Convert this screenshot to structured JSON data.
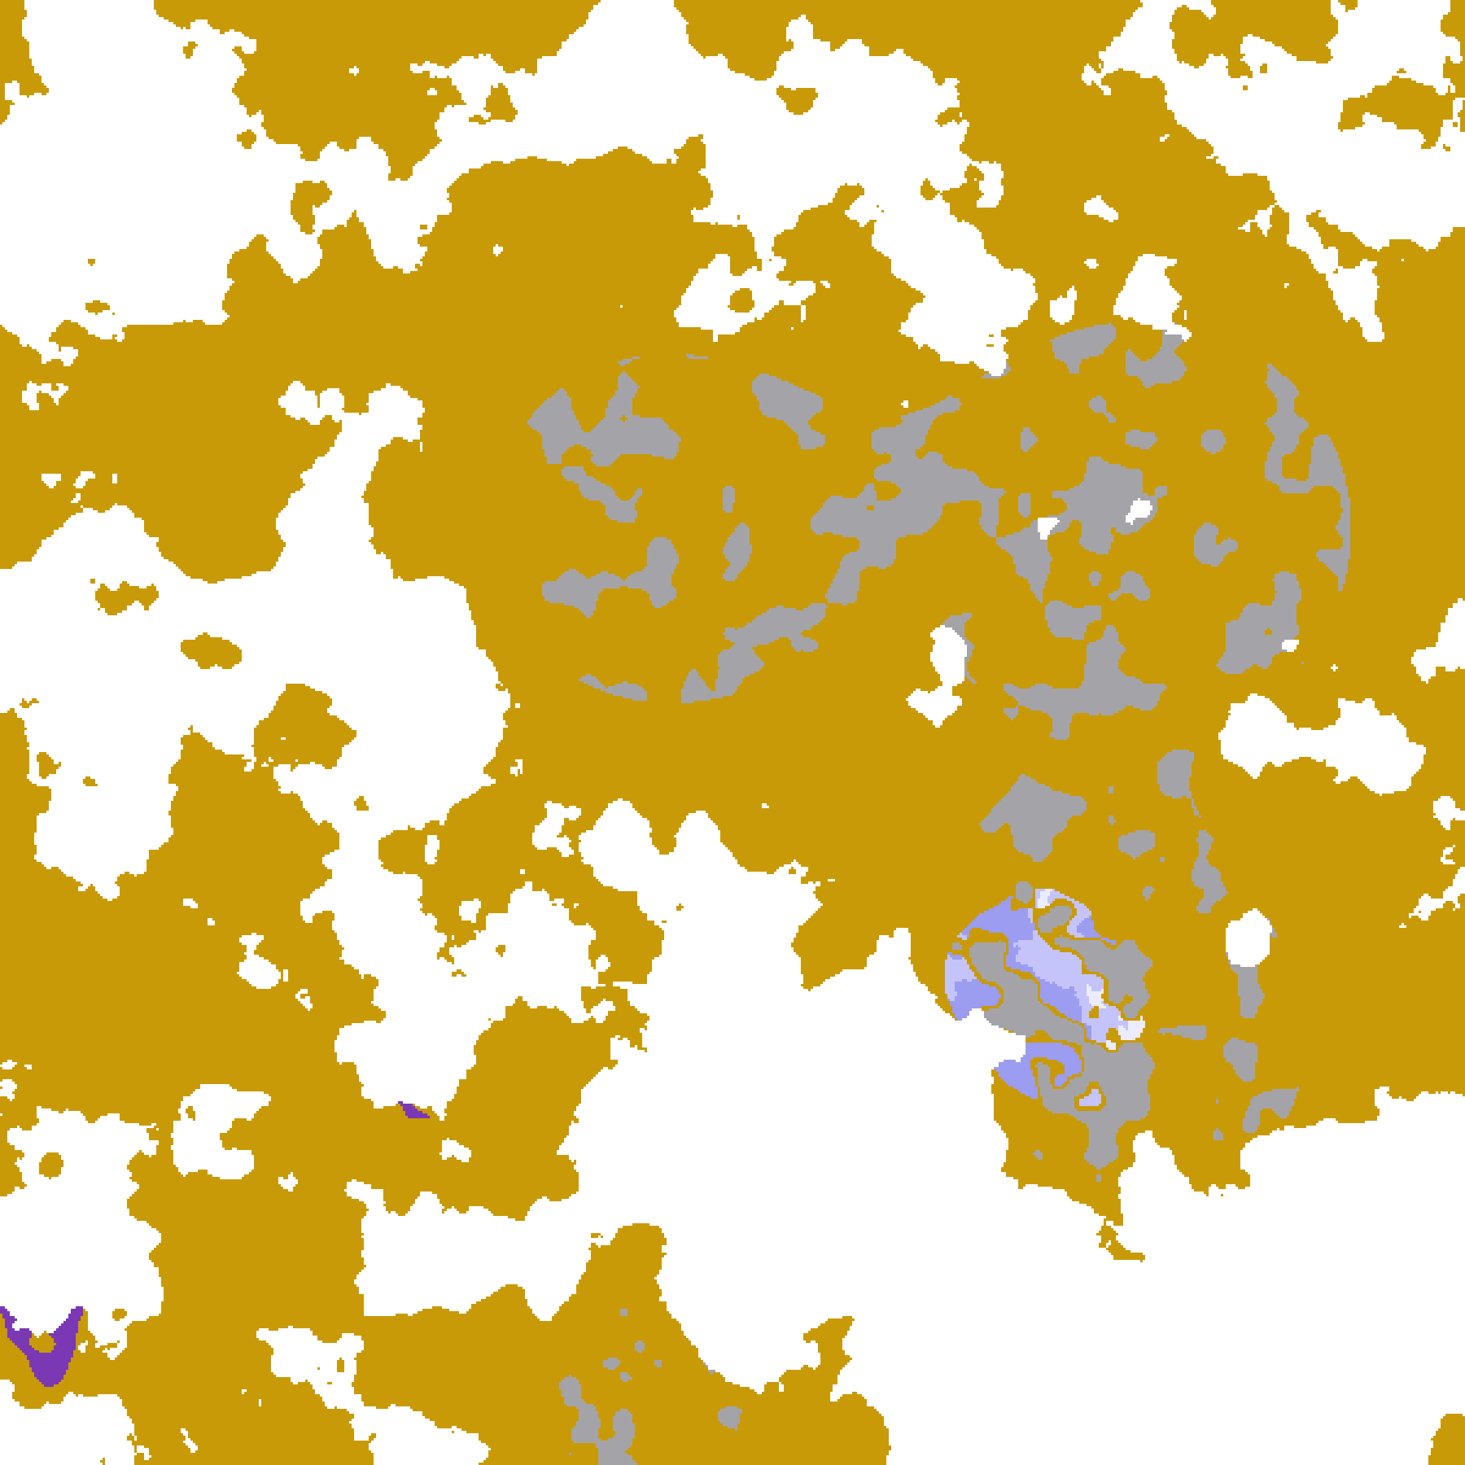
{
  "palette": {
    "clear": "#ffffff",
    "gold": "#c99a08",
    "purple": "#7a38b4",
    "magenta": "#d055e0",
    "lavender": "#c4c4fa",
    "pale": "#ececff",
    "gray": "#a4a4a8",
    "periwinkle": "#9c9cf0"
  }
}
